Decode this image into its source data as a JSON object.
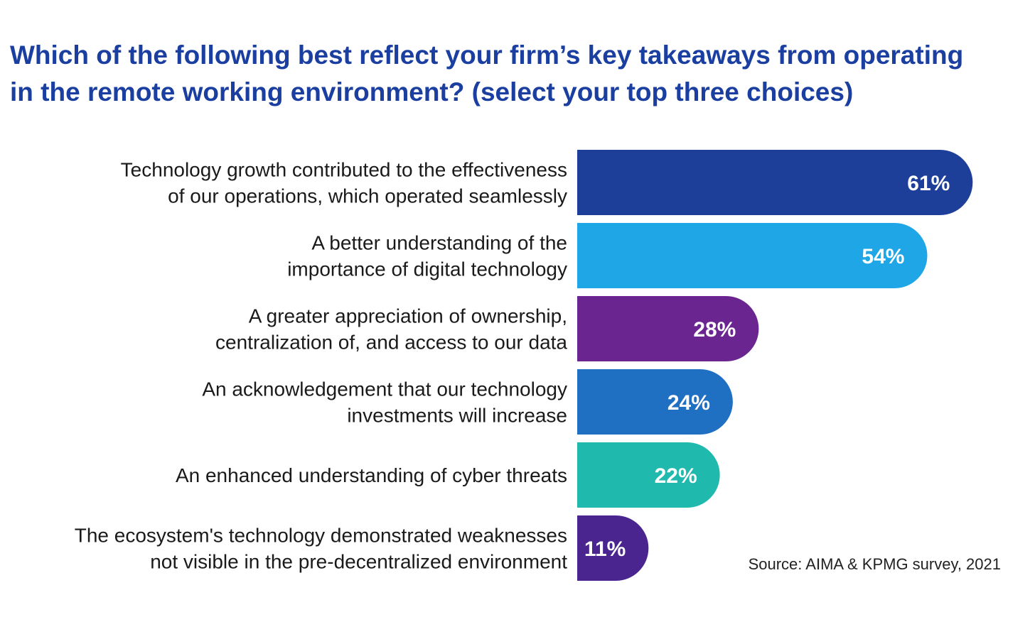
{
  "title_lines": [
    "Which of the following best reflect your firm’s key takeaways from operating",
    "in the remote working environment? (select your top three choices)"
  ],
  "source": "Source: AIMA & KPMG survey, 2021",
  "chart_data": {
    "type": "bar",
    "orientation": "horizontal",
    "title": "Which of the following best reflect your firm’s key takeaways from operating in the remote working environment? (select your top three choices)",
    "unit": "%",
    "xlim": [
      0,
      100
    ],
    "grid": false,
    "legend": "none",
    "categories": [
      [
        "Technology growth contributed to the effectiveness",
        "of our operations, which operated seamlessly"
      ],
      [
        "A better understanding of the",
        "importance of digital technology"
      ],
      [
        "A greater appreciation of ownership,",
        "centralization of, and access to our data"
      ],
      [
        "An acknowledgement that our technology",
        "investments will increase"
      ],
      [
        "An enhanced understanding of cyber threats"
      ],
      [
        "The ecosystem's technology demonstrated weaknesses",
        "not visible in the pre-decentralized environment"
      ]
    ],
    "values": [
      61,
      54,
      28,
      24,
      22,
      11
    ],
    "value_labels": [
      "61%",
      "54%",
      "28%",
      "24%",
      "22%",
      "11%"
    ],
    "colors": [
      "#1e3f99",
      "#1ea6e6",
      "#6b2590",
      "#1f6fc2",
      "#1fb9ad",
      "#4a2590"
    ]
  }
}
